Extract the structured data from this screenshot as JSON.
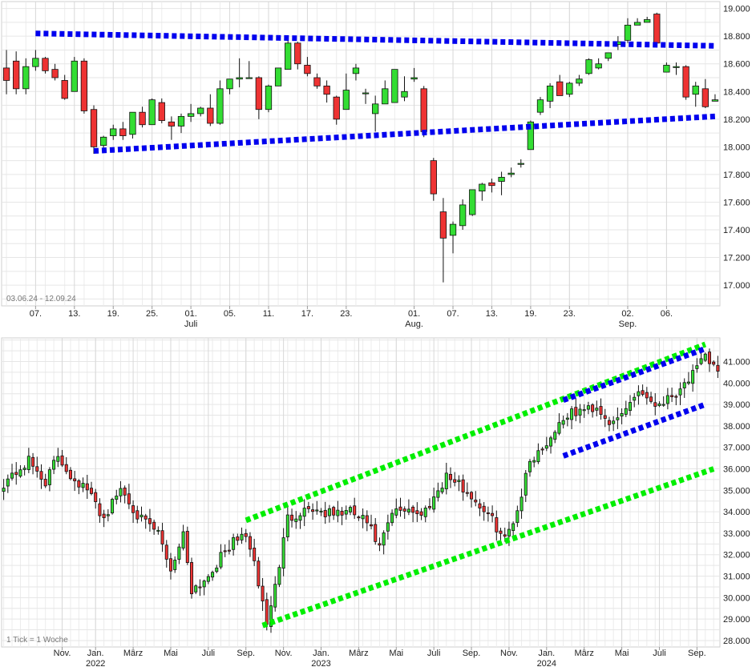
{
  "chart_data": [
    {
      "type": "candlestick",
      "period_label": "03.06.24 - 12.09.24",
      "ylim": [
        16850,
        19050
      ],
      "y_ticks": [
        17000,
        17200,
        17400,
        17600,
        17800,
        18000,
        18200,
        18400,
        18600,
        18800,
        19000
      ],
      "y_tick_labels": [
        "17.000",
        "17.200",
        "17.400",
        "17.600",
        "17.800",
        "18.000",
        "18.200",
        "18.400",
        "18.600",
        "18.800",
        "19.000"
      ],
      "x_ticks": [
        {
          "i": 3,
          "label": "07.",
          "sub": ""
        },
        {
          "i": 7,
          "label": "13.",
          "sub": ""
        },
        {
          "i": 11,
          "label": "19.",
          "sub": ""
        },
        {
          "i": 15,
          "label": "25.",
          "sub": ""
        },
        {
          "i": 19,
          "label": "01.",
          "sub": "Juli"
        },
        {
          "i": 23,
          "label": "05.",
          "sub": ""
        },
        {
          "i": 27,
          "label": "11.",
          "sub": ""
        },
        {
          "i": 31,
          "label": "17.",
          "sub": ""
        },
        {
          "i": 35,
          "label": "23.",
          "sub": ""
        },
        {
          "i": 42,
          "label": "01.",
          "sub": "Aug."
        },
        {
          "i": 46,
          "label": "07.",
          "sub": ""
        },
        {
          "i": 50,
          "label": "13.",
          "sub": ""
        },
        {
          "i": 54,
          "label": "19.",
          "sub": ""
        },
        {
          "i": 58,
          "label": "23.",
          "sub": ""
        },
        {
          "i": 64,
          "label": "02.",
          "sub": "Sep."
        },
        {
          "i": 68,
          "label": "06.",
          "sub": ""
        }
      ],
      "candles": [
        [
          18570,
          18700,
          18380,
          18480
        ],
        [
          18620,
          18690,
          18380,
          18420
        ],
        [
          18420,
          18640,
          18380,
          18580
        ],
        [
          18580,
          18700,
          18550,
          18640
        ],
        [
          18640,
          18650,
          18530,
          18550
        ],
        [
          18560,
          18600,
          18480,
          18500
        ],
        [
          18480,
          18520,
          18340,
          18350
        ],
        [
          18400,
          18650,
          18400,
          18620
        ],
        [
          18620,
          18640,
          18240,
          18260
        ],
        [
          18270,
          18300,
          17950,
          18000
        ],
        [
          18010,
          18080,
          17960,
          18070
        ],
        [
          18080,
          18160,
          18050,
          18130
        ],
        [
          18130,
          18180,
          18050,
          18080
        ],
        [
          18090,
          18250,
          18060,
          18250
        ],
        [
          18250,
          18290,
          18140,
          18160
        ],
        [
          18160,
          18350,
          18160,
          18340
        ],
        [
          18320,
          18350,
          18170,
          18190
        ],
        [
          18180,
          18220,
          18050,
          18150
        ],
        [
          18150,
          18240,
          18100,
          18220
        ],
        [
          18220,
          18310,
          18180,
          18240
        ],
        [
          18240,
          18290,
          18220,
          18280
        ],
        [
          18280,
          18380,
          18150,
          18170
        ],
        [
          18170,
          18480,
          18160,
          18420
        ],
        [
          18420,
          18480,
          18380,
          18490
        ],
        [
          18490,
          18640,
          18430,
          18500
        ],
        [
          18500,
          18620,
          18500,
          18500
        ],
        [
          18500,
          18510,
          18200,
          18270
        ],
        [
          18270,
          18450,
          18250,
          18440
        ],
        [
          18440,
          18560,
          18440,
          18570
        ],
        [
          18560,
          18790,
          18560,
          18750
        ],
        [
          18750,
          18760,
          18560,
          18600
        ],
        [
          18590,
          18650,
          18510,
          18530
        ],
        [
          18500,
          18530,
          18420,
          18440
        ],
        [
          18440,
          18480,
          18320,
          18380
        ],
        [
          18360,
          18370,
          18160,
          18200
        ],
        [
          18270,
          18530,
          18270,
          18410
        ],
        [
          18530,
          18600,
          18480,
          18570
        ],
        [
          18390,
          18420,
          18310,
          18390
        ],
        [
          18240,
          18370,
          18110,
          18310
        ],
        [
          18310,
          18480,
          18310,
          18420
        ],
        [
          18320,
          18550,
          18320,
          18560
        ],
        [
          18360,
          18510,
          18330,
          18400
        ],
        [
          18490,
          18570,
          18470,
          18500
        ],
        [
          18420,
          18440,
          18070,
          18110
        ],
        [
          17900,
          17920,
          17610,
          17660
        ],
        [
          17530,
          17630,
          17020,
          17340
        ],
        [
          17360,
          17460,
          17230,
          17440
        ],
        [
          17430,
          17620,
          17400,
          17580
        ],
        [
          17510,
          17690,
          17500,
          17690
        ],
        [
          17680,
          17740,
          17610,
          17730
        ],
        [
          17740,
          17770,
          17670,
          17720
        ],
        [
          17750,
          17820,
          17650,
          17780
        ],
        [
          17800,
          17850,
          17780,
          17810
        ],
        [
          17880,
          17910,
          17850,
          17880
        ],
        [
          17980,
          18190,
          17980,
          18180
        ],
        [
          18250,
          18360,
          18230,
          18340
        ],
        [
          18330,
          18460,
          18280,
          18440
        ],
        [
          18470,
          18520,
          18390,
          18370
        ],
        [
          18380,
          18470,
          18360,
          18460
        ],
        [
          18460,
          18520,
          18440,
          18490
        ],
        [
          18530,
          18640,
          18520,
          18630
        ],
        [
          18570,
          18640,
          18560,
          18600
        ],
        [
          18640,
          18680,
          18620,
          18680
        ],
        [
          18740,
          18800,
          18700,
          18760
        ],
        [
          18770,
          18930,
          18750,
          18880
        ],
        [
          18880,
          18930,
          18880,
          18900
        ],
        [
          18900,
          18940,
          18900,
          18920
        ],
        [
          18960,
          18970,
          18740,
          18750
        ],
        [
          18540,
          18610,
          18540,
          18590
        ],
        [
          18580,
          18610,
          18520,
          18580
        ],
        [
          18580,
          18590,
          18340,
          18360
        ],
        [
          18380,
          18470,
          18290,
          18440
        ],
        [
          18420,
          18490,
          18280,
          18290
        ],
        [
          18330,
          18380,
          18340,
          18340
        ]
      ],
      "trendlines": [
        {
          "color": "#0000ee",
          "from": [
            3,
            18820
          ],
          "to": [
            73,
            18730
          ]
        },
        {
          "color": "#0000ee",
          "from": [
            9,
            17970
          ],
          "to": [
            73,
            18220
          ]
        }
      ]
    },
    {
      "type": "candlestick",
      "period_label": "1 Tick = 1 Woche",
      "ylim": [
        27700,
        42100
      ],
      "y_ticks": [
        28000,
        29000,
        30000,
        31000,
        32000,
        33000,
        34000,
        35000,
        36000,
        37000,
        38000,
        39000,
        40000,
        41000
      ],
      "y_tick_labels": [
        "28.000",
        "29.000",
        "30.000",
        "31.000",
        "32.000",
        "33.000",
        "34.000",
        "35.000",
        "36.000",
        "37.000",
        "38.000",
        "39.000",
        "40.000",
        "41.000"
      ],
      "x_ticks": [
        {
          "i": 14,
          "label": "Nov.",
          "sub": ""
        },
        {
          "i": 22,
          "label": "Jan.",
          "sub": "2022"
        },
        {
          "i": 31,
          "label": "März",
          "sub": ""
        },
        {
          "i": 40,
          "label": "Mai",
          "sub": ""
        },
        {
          "i": 49,
          "label": "Juli",
          "sub": ""
        },
        {
          "i": 58,
          "label": "Sep.",
          "sub": ""
        },
        {
          "i": 67,
          "label": "Nov.",
          "sub": ""
        },
        {
          "i": 76,
          "label": "Jan.",
          "sub": "2023"
        },
        {
          "i": 85,
          "label": "März",
          "sub": ""
        },
        {
          "i": 94,
          "label": "Mai",
          "sub": ""
        },
        {
          "i": 103,
          "label": "Juli",
          "sub": ""
        },
        {
          "i": 112,
          "label": "Sep.",
          "sub": ""
        },
        {
          "i": 121,
          "label": "Nov.",
          "sub": ""
        },
        {
          "i": 130,
          "label": "Jan.",
          "sub": "2024"
        },
        {
          "i": 139,
          "label": "März",
          "sub": ""
        },
        {
          "i": 148,
          "label": "Mai",
          "sub": ""
        },
        {
          "i": 157,
          "label": "Juli",
          "sub": ""
        },
        {
          "i": 166,
          "label": "Sep.",
          "sub": ""
        }
      ],
      "trendlines": [
        {
          "color": "#00ee00",
          "from": [
            58,
            33600
          ],
          "to": [
            168,
            41800
          ]
        },
        {
          "color": "#00ee00",
          "from": [
            62,
            28700
          ],
          "to": [
            170,
            36000
          ]
        },
        {
          "color": "#0000ee",
          "from": [
            134,
            39200
          ],
          "to": [
            168,
            41600
          ]
        },
        {
          "color": "#0000ee",
          "from": [
            134,
            36600
          ],
          "to": [
            168,
            39000
          ]
        }
      ]
    }
  ]
}
